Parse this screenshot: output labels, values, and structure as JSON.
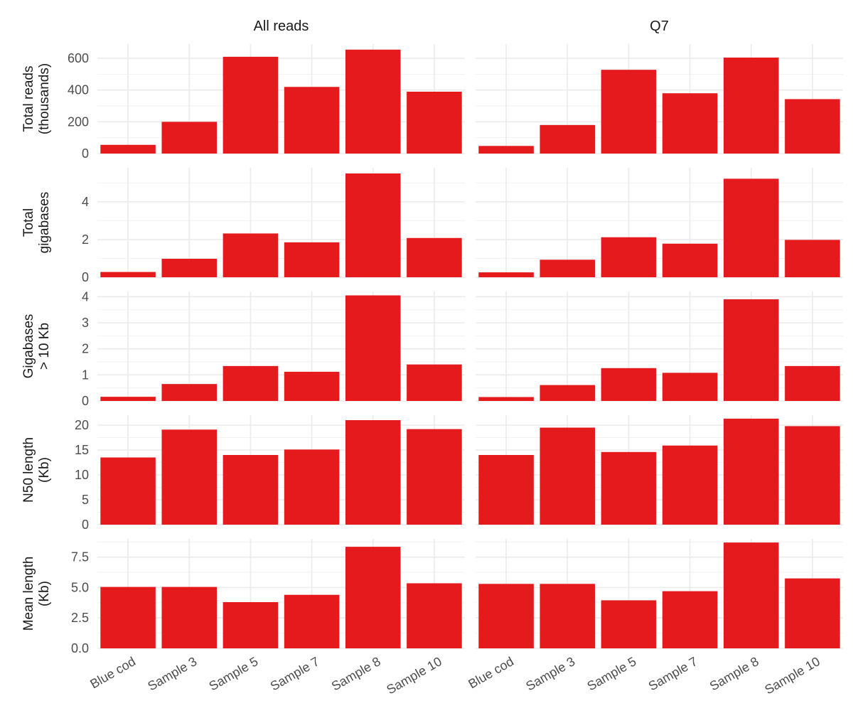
{
  "chart_data": {
    "type": "bar",
    "facet_columns": [
      "All reads",
      "Q7"
    ],
    "categories": [
      "Blue cod",
      "Sample 3",
      "Sample 5",
      "Sample 7",
      "Sample 8",
      "Sample 10"
    ],
    "bar_color": "#e41a1c",
    "grid": true,
    "rows": [
      {
        "ylabel": [
          "Total reads",
          "(thousands)"
        ],
        "ylim": [
          0,
          690
        ],
        "ticks": [
          0,
          200,
          400,
          600
        ],
        "tick_labels": [
          "0",
          "200",
          "400",
          "600"
        ],
        "series": [
          {
            "panel": "All reads",
            "values": [
              55,
              200,
              610,
              420,
              655,
              390
            ]
          },
          {
            "panel": "Q7",
            "values": [
              48,
              180,
              528,
              380,
              605,
              343
            ]
          }
        ]
      },
      {
        "ylabel": [
          "Total",
          "gigabases"
        ],
        "ylim": [
          0,
          5.8
        ],
        "ticks": [
          0,
          2,
          4
        ],
        "tick_labels": [
          "0",
          "2",
          "4"
        ],
        "series": [
          {
            "panel": "All reads",
            "values": [
              0.28,
              0.98,
              2.32,
              1.85,
              5.5,
              2.08
            ]
          },
          {
            "panel": "Q7",
            "values": [
              0.26,
              0.93,
              2.12,
              1.78,
              5.22,
              1.98
            ]
          }
        ]
      },
      {
        "ylabel": [
          "Gigabases",
          "> 10 Kb"
        ],
        "ylim": [
          0,
          4.2
        ],
        "ticks": [
          0,
          1,
          2,
          3,
          4
        ],
        "tick_labels": [
          "0",
          "1",
          "2",
          "3",
          "4"
        ],
        "series": [
          {
            "panel": "All reads",
            "values": [
              0.16,
              0.65,
              1.34,
              1.12,
              4.05,
              1.4
            ]
          },
          {
            "panel": "Q7",
            "values": [
              0.15,
              0.61,
              1.26,
              1.08,
              3.9,
              1.34
            ]
          }
        ]
      },
      {
        "ylabel": [
          "N50 length",
          "(Kb)"
        ],
        "ylim": [
          0,
          22
        ],
        "ticks": [
          0,
          5,
          10,
          15,
          20
        ],
        "tick_labels": [
          "0",
          "5",
          "10",
          "15",
          "20"
        ],
        "series": [
          {
            "panel": "All reads",
            "values": [
              13.5,
              19.1,
              14.0,
              15.1,
              21.0,
              19.2
            ]
          },
          {
            "panel": "Q7",
            "values": [
              14.0,
              19.5,
              14.6,
              15.9,
              21.3,
              19.8
            ]
          }
        ]
      },
      {
        "ylabel": [
          "Mean length",
          "(Kb)"
        ],
        "ylim": [
          0,
          9.0
        ],
        "ticks": [
          0,
          2.5,
          5,
          7.5
        ],
        "tick_labels": [
          "0.0",
          "2.5",
          "5.0",
          "7.5"
        ],
        "series": [
          {
            "panel": "All reads",
            "values": [
              5.05,
              5.05,
              3.8,
              4.4,
              8.35,
              5.35
            ]
          },
          {
            "panel": "Q7",
            "values": [
              5.3,
              5.3,
              3.95,
              4.7,
              8.7,
              5.75
            ]
          }
        ]
      }
    ]
  }
}
